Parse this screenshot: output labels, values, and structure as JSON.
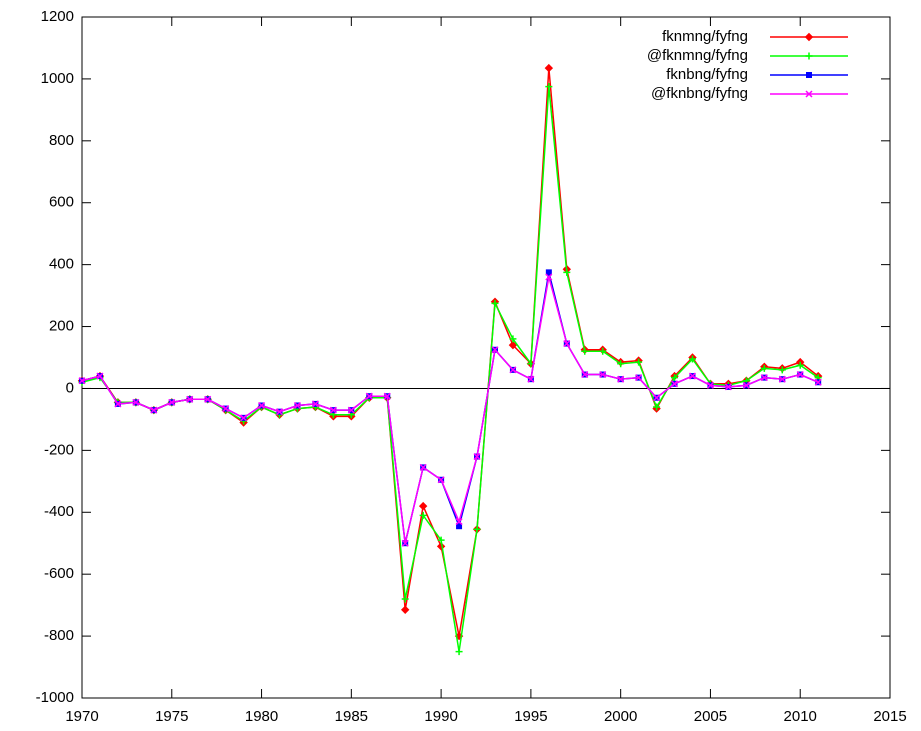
{
  "chart_data": {
    "type": "line",
    "x": [
      1970,
      1971,
      1972,
      1973,
      1974,
      1975,
      1976,
      1977,
      1978,
      1979,
      1980,
      1981,
      1982,
      1983,
      1984,
      1985,
      1986,
      1987,
      1988,
      1989,
      1990,
      1991,
      1992,
      1993,
      1994,
      1995,
      1996,
      1997,
      1998,
      1999,
      2000,
      2001,
      2002,
      2003,
      2004,
      2005,
      2006,
      2007,
      2008,
      2009,
      2010,
      2011
    ],
    "series": [
      {
        "name": "fknmng/fyfng",
        "color": "#ff0000",
        "marker": "diamond",
        "values": [
          25,
          40,
          -45,
          -45,
          -70,
          -45,
          -35,
          -35,
          -70,
          -110,
          -60,
          -85,
          -65,
          -60,
          -90,
          -90,
          -30,
          -30,
          -715,
          -380,
          -510,
          -800,
          -455,
          280,
          140,
          80,
          1035,
          385,
          125,
          125,
          85,
          90,
          -65,
          40,
          100,
          15,
          15,
          25,
          70,
          65,
          85,
          40
        ]
      },
      {
        "name": "@fknmng/fyfng",
        "color": "#00ff00",
        "marker": "plus",
        "values": [
          20,
          35,
          -45,
          -45,
          -70,
          -45,
          -35,
          -35,
          -70,
          -105,
          -60,
          -85,
          -65,
          -60,
          -85,
          -85,
          -30,
          -30,
          -680,
          -410,
          -490,
          -850,
          -455,
          275,
          160,
          80,
          975,
          375,
          120,
          120,
          80,
          85,
          -60,
          35,
          95,
          15,
          10,
          25,
          65,
          60,
          75,
          35
        ]
      },
      {
        "name": "fknbng/fyfng",
        "color": "#0000ff",
        "marker": "square",
        "values": [
          25,
          40,
          -50,
          -45,
          -70,
          -45,
          -35,
          -35,
          -65,
          -95,
          -55,
          -75,
          -55,
          -50,
          -70,
          -70,
          -25,
          -25,
          -500,
          -255,
          -295,
          -445,
          -220,
          125,
          60,
          30,
          375,
          145,
          45,
          45,
          30,
          35,
          -30,
          15,
          40,
          10,
          5,
          10,
          35,
          30,
          45,
          20
        ]
      },
      {
        "name": "@fknbng/fyfng",
        "color": "#ff00ff",
        "marker": "cross",
        "values": [
          25,
          40,
          -50,
          -45,
          -70,
          -45,
          -35,
          -35,
          -65,
          -95,
          -55,
          -75,
          -55,
          -50,
          -70,
          -70,
          -25,
          -25,
          -500,
          -255,
          -295,
          -430,
          -220,
          125,
          60,
          30,
          360,
          145,
          45,
          45,
          30,
          35,
          -30,
          15,
          40,
          10,
          5,
          10,
          35,
          30,
          45,
          20
        ]
      }
    ],
    "xlim": [
      1970,
      2015
    ],
    "xticks": [
      1970,
      1975,
      1980,
      1985,
      1990,
      1995,
      2000,
      2005,
      2010,
      2015
    ],
    "ylim": [
      -1000,
      1200
    ],
    "yticks": [
      -1000,
      -800,
      -600,
      -400,
      -200,
      0,
      200,
      400,
      600,
      800,
      1000,
      1200
    ],
    "zero_line": true,
    "legend": "top-right"
  }
}
